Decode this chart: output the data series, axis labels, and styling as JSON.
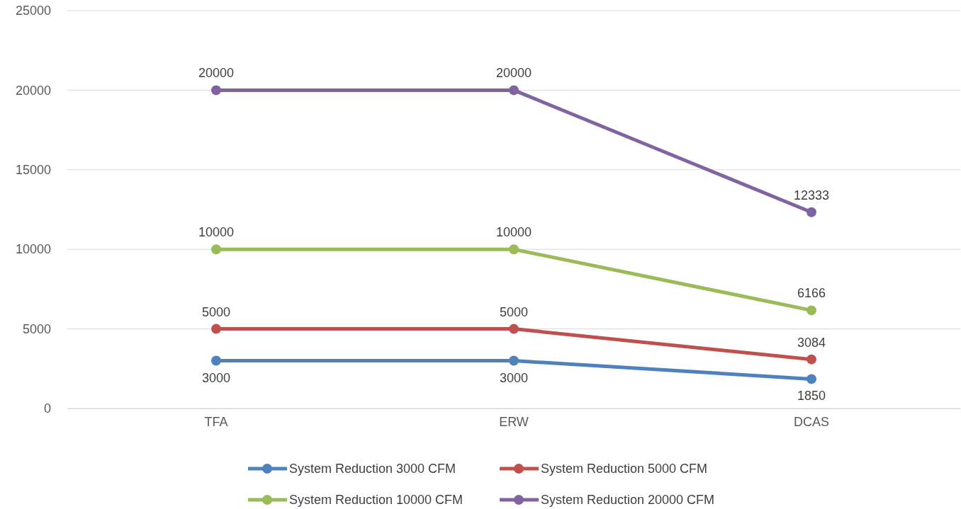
{
  "chart_data": {
    "type": "line",
    "categories": [
      "TFA",
      "ERW",
      "DCAS"
    ],
    "series": [
      {
        "name": "System Reduction 3000 CFM",
        "color": "#4f81bd",
        "values": [
          3000,
          3000,
          1850
        ]
      },
      {
        "name": "System Reduction 5000 CFM",
        "color": "#c0504d",
        "values": [
          5000,
          5000,
          3084
        ]
      },
      {
        "name": "System Reduction 10000 CFM",
        "color": "#9bbb59",
        "values": [
          10000,
          10000,
          6166
        ]
      },
      {
        "name": "System Reduction 20000 CFM",
        "color": "#8064a2",
        "values": [
          20000,
          20000,
          12333
        ]
      }
    ],
    "ylim": [
      0,
      25000
    ],
    "yticks": [
      0,
      5000,
      10000,
      15000,
      20000,
      25000
    ],
    "grid": "y",
    "legend": "bottom",
    "marker": "circle",
    "line_style": "solid",
    "data_labels": true
  }
}
